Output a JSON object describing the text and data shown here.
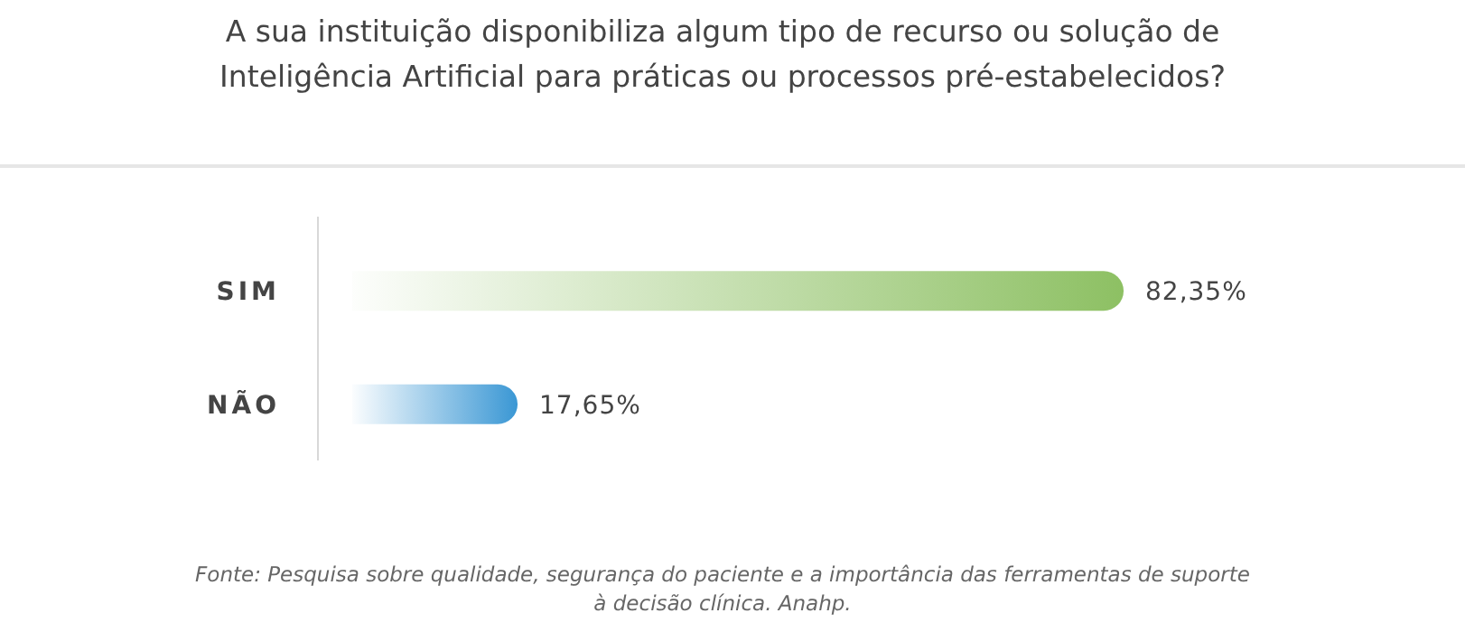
{
  "chart_data": {
    "type": "bar",
    "orientation": "horizontal",
    "title": "A sua instituição disponibiliza algum tipo de recurso ou solução de Inteligência Artificial para práticas ou processos pré-estabelecidos?",
    "categories": [
      "SIM",
      "NÃO"
    ],
    "values": [
      82.35,
      17.65
    ],
    "value_labels": [
      "82,35%",
      "17,65%"
    ],
    "colors": [
      "#8dc063",
      "#3a97d4"
    ],
    "annotations": [
      "Fonte: Pesquisa sobre qualidade, segurança do paciente e a importância das ferramentas de suporte à decisão clínica. Anahp."
    ]
  }
}
